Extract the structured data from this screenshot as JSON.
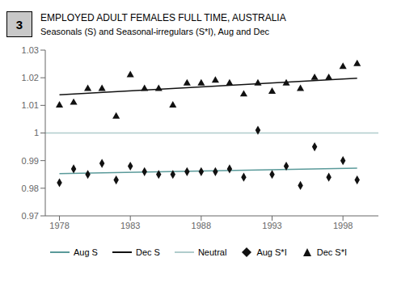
{
  "chart_data": {
    "type": "line",
    "title": "EMPLOYED ADULT FEMALES FULL TIME, AUSTRALIA",
    "subtitle": "Seasonals (S) and Seasonal-irregulars (S*I), Aug and Dec",
    "annotations": [
      "3"
    ],
    "xlim": [
      1977,
      2000.5
    ],
    "ylim": [
      0.97,
      1.03
    ],
    "xticks": [
      1978,
      1983,
      1988,
      1993,
      1998
    ],
    "yticks": [
      0.97,
      0.98,
      0.99,
      1.0,
      1.01,
      1.02,
      1.03
    ],
    "grid": false,
    "legend": "bottom",
    "series": [
      {
        "name": "Aug S",
        "type": "line",
        "color": "#5a9a9a",
        "x": [
          1978,
          1999
        ],
        "values": [
          0.9853,
          0.9873
        ]
      },
      {
        "name": "Dec S",
        "type": "line",
        "color": "#111111",
        "x": [
          1978,
          1999
        ],
        "values": [
          1.0138,
          1.0198
        ]
      },
      {
        "name": "Neutral",
        "type": "hline",
        "color": "#b0cccc",
        "values": [
          1.0
        ]
      },
      {
        "name": "Aug S*I",
        "type": "scatter",
        "marker": "diamond",
        "color": "#111111",
        "x": [
          1978,
          1979,
          1980,
          1981,
          1982,
          1983,
          1984,
          1985,
          1986,
          1987,
          1988,
          1989,
          1990,
          1991,
          1992,
          1993,
          1994,
          1995,
          1996,
          1997,
          1998,
          1999
        ],
        "values": [
          0.982,
          0.987,
          0.985,
          0.989,
          0.983,
          0.988,
          0.986,
          0.985,
          0.985,
          0.986,
          0.986,
          0.986,
          0.987,
          0.984,
          1.001,
          0.985,
          0.988,
          0.981,
          0.995,
          0.984,
          0.99,
          0.983
        ]
      },
      {
        "name": "Dec S*I",
        "type": "scatter",
        "marker": "triangle",
        "color": "#111111",
        "x": [
          1978,
          1979,
          1980,
          1981,
          1982,
          1983,
          1984,
          1985,
          1986,
          1987,
          1988,
          1989,
          1990,
          1991,
          1992,
          1993,
          1994,
          1995,
          1996,
          1997,
          1998,
          1999
        ],
        "values": [
          1.01,
          1.011,
          1.016,
          1.016,
          1.006,
          1.021,
          1.016,
          1.016,
          1.01,
          1.018,
          1.018,
          1.019,
          1.018,
          1.014,
          1.018,
          1.015,
          1.018,
          1.016,
          1.02,
          1.02,
          1.024,
          1.025
        ]
      }
    ]
  }
}
